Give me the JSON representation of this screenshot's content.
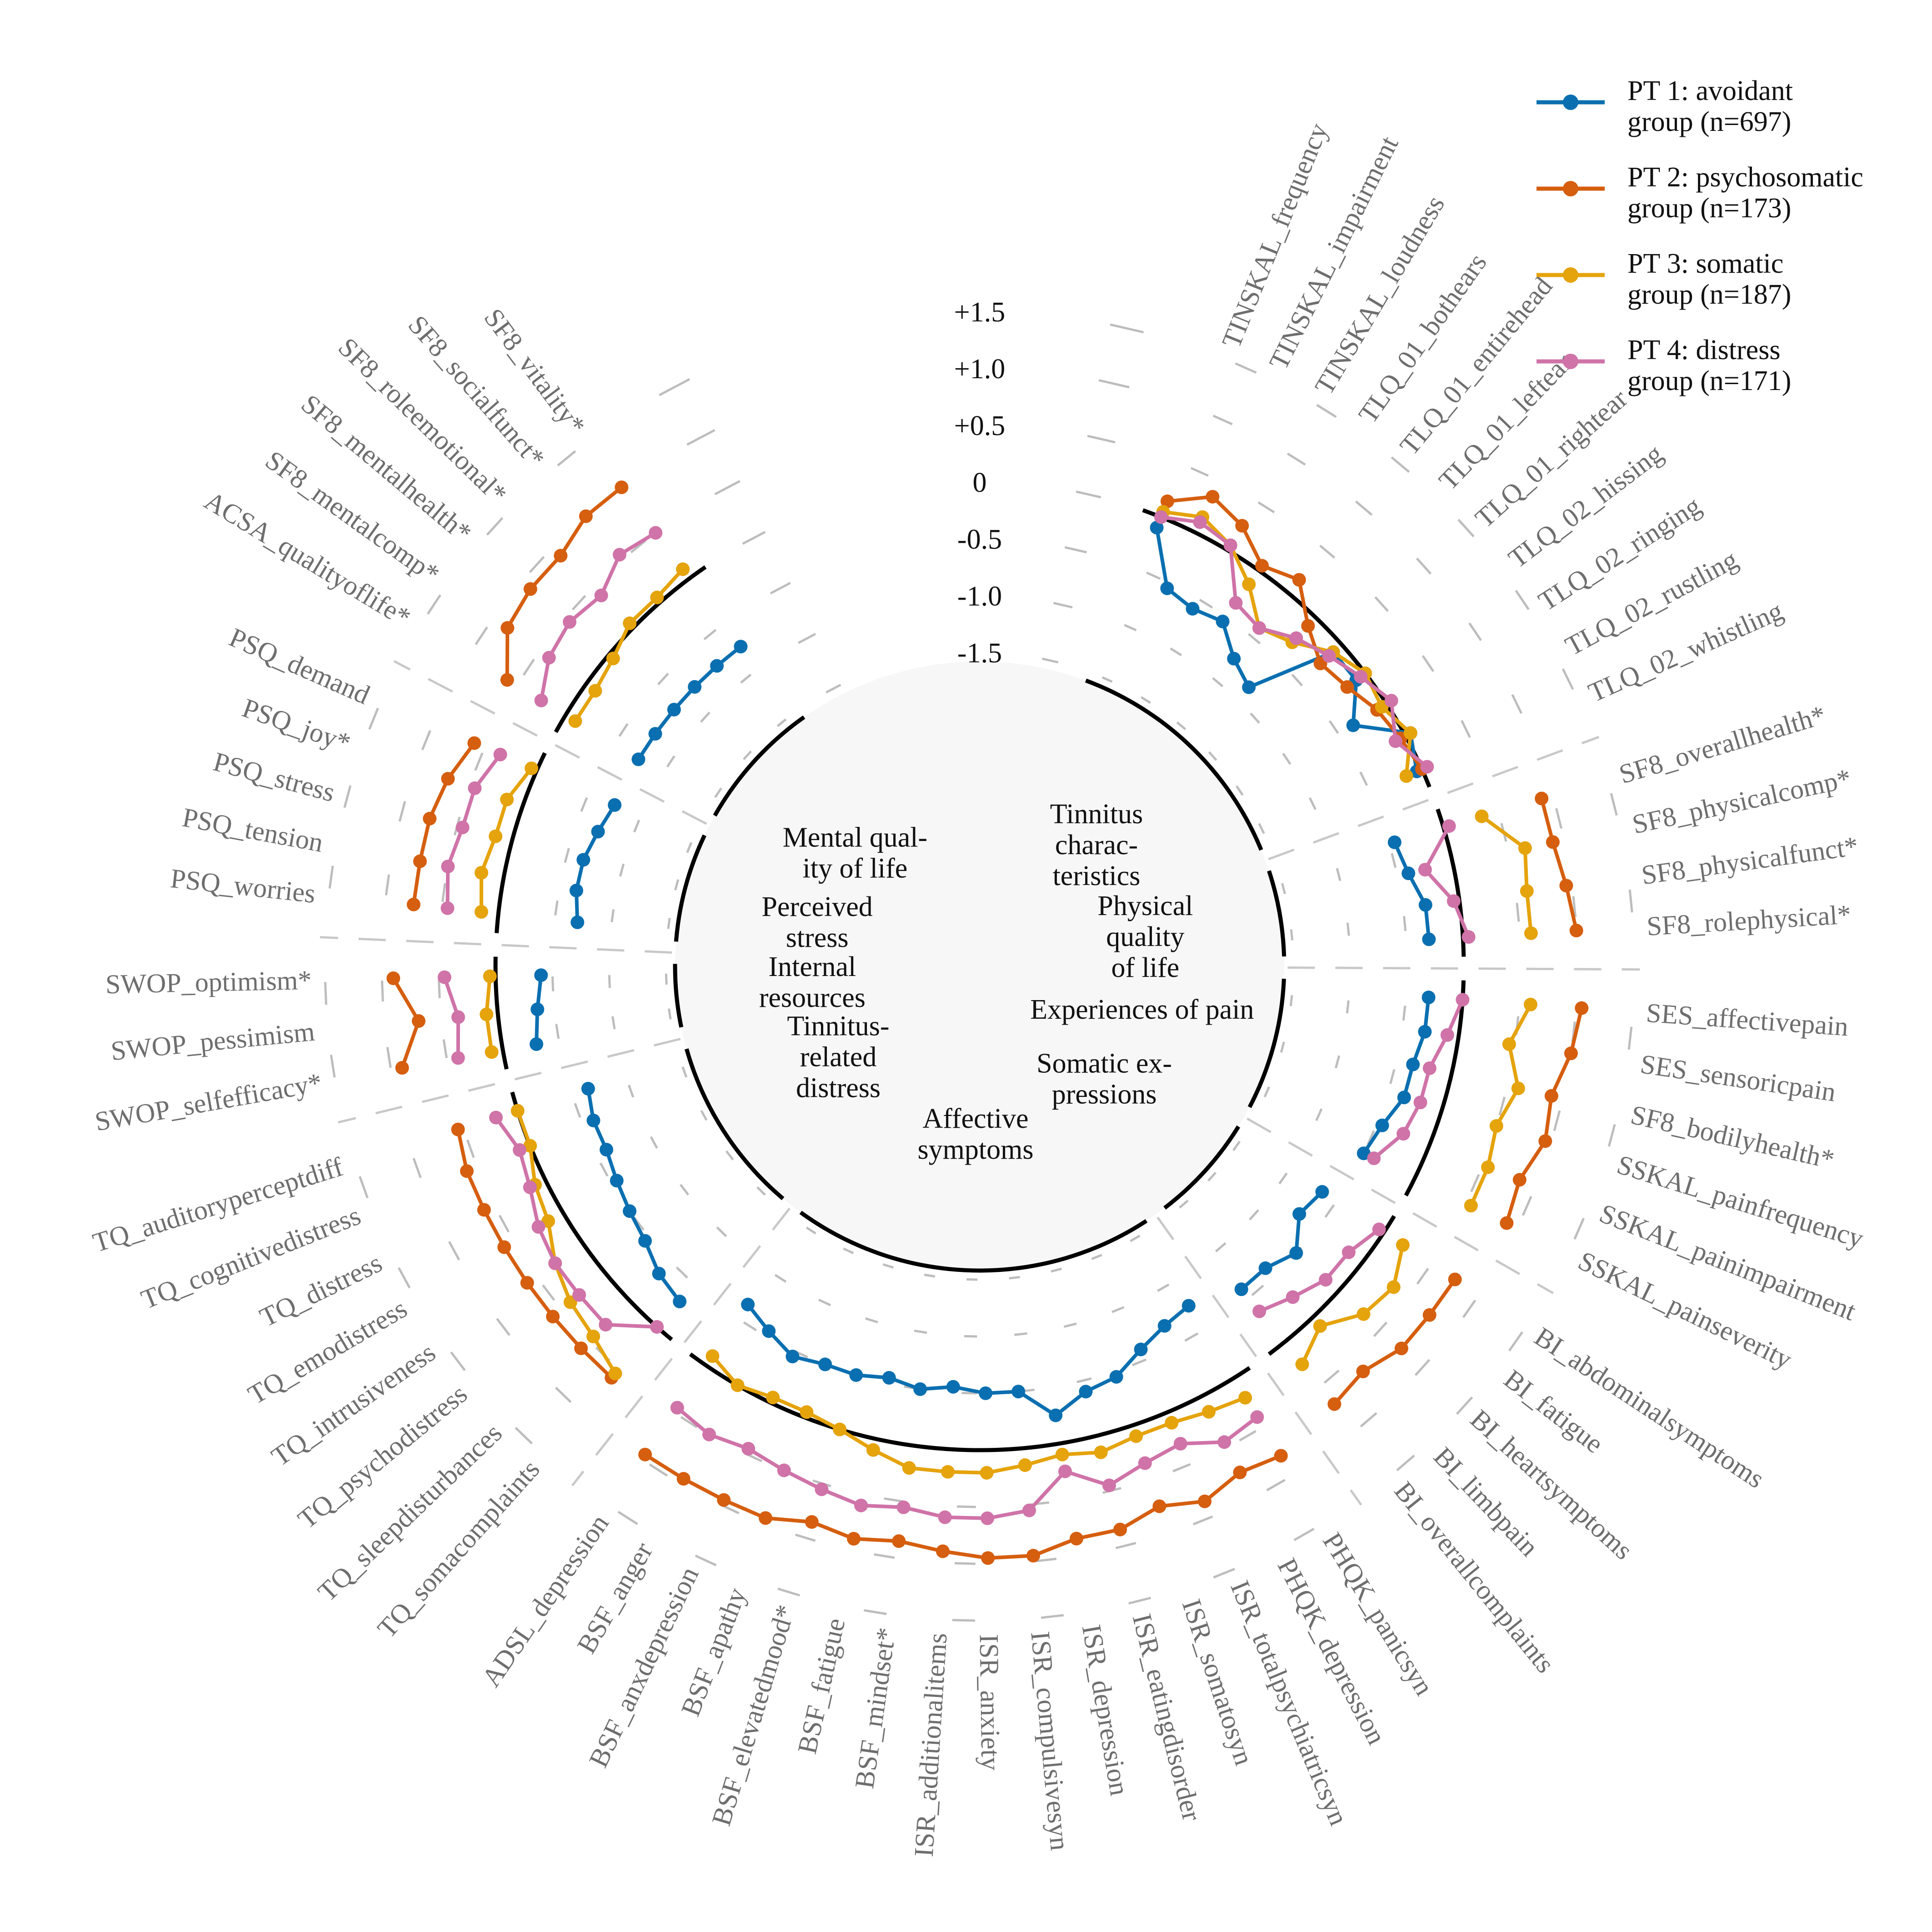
{
  "chart_data": {
    "type": "line",
    "layout": "radial",
    "ticks": [
      "+1.5",
      "+1.0",
      "+0.5",
      "0",
      "-0.5",
      "-1.0",
      "-1.5"
    ],
    "ylim": [
      -1.5,
      1.5
    ],
    "series": [
      {
        "name": "PT 1: avoidant group (n=697)",
        "legend_line1": "PT 1: avoidant",
        "legend_line2": "group (n=697)",
        "color": "#0a6fb0"
      },
      {
        "name": "PT 2: psychosomatic group (n=173)",
        "legend_line1": "PT 2: psychosomatic",
        "legend_line2": "group (n=173)",
        "color": "#d55e0f"
      },
      {
        "name": "PT 3: somatic group (n=187)",
        "legend_line1": "PT 3: somatic",
        "legend_line2": "group (n=187)",
        "color": "#e5a30c"
      },
      {
        "name": "PT 4: distress group (n=171)",
        "legend_line1": "PT 4: distress",
        "legend_line2": "group (n=171)",
        "color": "#cf73a8"
      }
    ],
    "domains": [
      {
        "name": "Tinnitus characteristics",
        "label_lines": [
          "Tinnitus",
          "charac-",
          "teristics"
        ],
        "variables": [
          "TINSKAL_frequency",
          "TINSKAL_impairment",
          "TINSKAL_loudness",
          "TLQ_01_bothears",
          "TLQ_01_entirehead",
          "TLQ_01_leftear",
          "TLQ_01_rightear",
          "TLQ_02_hissing",
          "TLQ_02_ringing",
          "TLQ_02_rustling",
          "TLQ_02_whistling"
        ],
        "values": [
          [
            -0.1,
            -0.55,
            -0.6,
            -0.55,
            -0.75,
            -0.85,
            -0.1,
            -0.1,
            -0.35,
            0.05,
            -0.05
          ],
          [
            0.15,
            0.35,
            0.25,
            0.05,
            0.15,
            -0.1,
            -0.25,
            -0.2,
            -0.1,
            -0.05,
            0.0
          ],
          [
            0.05,
            0.15,
            0.05,
            -0.15,
            -0.4,
            -0.3,
            -0.1,
            0.0,
            -0.05,
            0.05,
            -0.15
          ],
          [
            0.0,
            0.1,
            0.05,
            -0.35,
            -0.4,
            -0.25,
            -0.15,
            -0.05,
            0.05,
            -0.1,
            0.05
          ]
        ]
      },
      {
        "name": "Physical quality of life",
        "label_lines": [
          "Physical",
          "quality",
          "of life"
        ],
        "variables": [
          "SF8_overallhealth*",
          "SF8_physicalcomp*",
          "SF8_physicalfunct*",
          "SF8_rolephysical*"
        ],
        "values": [
          [
            -0.45,
            -0.4,
            -0.3,
            -0.3
          ],
          [
            0.9,
            0.9,
            0.95,
            1.0
          ],
          [
            0.35,
            0.65,
            0.6,
            0.6
          ],
          [
            0.05,
            -0.25,
            -0.05,
            0.05
          ]
        ]
      },
      {
        "name": "Experiences of pain",
        "label_lines": [
          "Experiences of pain"
        ],
        "variables": [
          "SES_affectivepain",
          "SES_sensoricpain",
          "SF8_bodilyhealth*",
          "SSKAL_painfrequency",
          "SSKAL_painimpairment",
          "SSKAL_painseverity"
        ],
        "values": [
          [
            -0.3,
            -0.3,
            -0.35,
            -0.35,
            -0.45,
            -0.5
          ],
          [
            1.05,
            1.0,
            0.9,
            0.95,
            0.85,
            0.9
          ],
          [
            0.6,
            0.45,
            0.6,
            0.5,
            0.55,
            0.55
          ],
          [
            0.0,
            -0.1,
            -0.2,
            -0.2,
            -0.25,
            -0.4
          ]
        ]
      },
      {
        "name": "Somatic expressions",
        "label_lines": [
          "Somatic ex-",
          "pressions"
        ],
        "variables": [
          "BI_abdominalsymptoms",
          "BI_fatigue",
          "BI_heartsymptoms",
          "BI_limbpain",
          "BI_overallcomplaints"
        ],
        "values": [
          [
            -0.65,
            -0.7,
            -0.5,
            -0.6,
            -0.6
          ],
          [
            0.75,
            0.75,
            0.75,
            0.65,
            0.7
          ],
          [
            0.2,
            0.35,
            0.3,
            0.1,
            0.25
          ],
          [
            -0.05,
            -0.15,
            -0.15,
            -0.25,
            -0.35
          ]
        ]
      },
      {
        "name": "Affective symptoms",
        "label_lines": [
          "Affective",
          "symptoms"
        ],
        "variables": [
          "PHQK_panicsyn",
          "PHQK_depression",
          "ISR_totalpsychiatricsyn",
          "ISR_somatosyn",
          "ISR_eatingdisorder",
          "ISR_depression",
          "ISR_compulsivesyn",
          "ISR_anxiety",
          "ISR_additionalitems",
          "BSF_mindset*",
          "BSF_fatigue",
          "BSF_elevatedmood*",
          "BSF_apathy",
          "BSF_anxdepression",
          "BSF_anger",
          "ADSL_depression"
        ],
        "values": [
          [
            -0.75,
            -0.7,
            -0.6,
            -0.45,
            -0.4,
            -0.25,
            -0.5,
            -0.5,
            -0.55,
            -0.5,
            -0.55,
            -0.5,
            -0.5,
            -0.45,
            -0.55,
            -0.65
          ],
          [
            0.8,
            0.75,
            0.85,
            0.75,
            0.85,
            0.85,
            0.95,
            0.95,
            0.9,
            0.85,
            0.9,
            0.85,
            0.95,
            0.95,
            0.95,
            0.95
          ],
          [
            0.2,
            0.15,
            0.1,
            0.1,
            0.15,
            0.1,
            0.15,
            0.2,
            0.2,
            0.2,
            0.1,
            0.0,
            -0.05,
            -0.05,
            0.0,
            -0.1
          ],
          [
            0.4,
            0.45,
            0.3,
            0.35,
            0.45,
            0.25,
            0.55,
            0.6,
            0.6,
            0.55,
            0.6,
            0.55,
            0.5,
            0.45,
            0.5,
            0.45
          ]
        ]
      },
      {
        "name": "Tinnitus-related distress",
        "label_lines": [
          "Tinnitus-",
          "related",
          "distress"
        ],
        "variables": [
          "TQ_somacomplaints",
          "TQ_sleepdisturbances",
          "TQ_psychodistress",
          "TQ_intrusiveness",
          "TQ_emodistress",
          "TQ_distress",
          "TQ_cognitivedistress",
          "TQ_auditoryperceptdiff"
        ],
        "values": [
          [
            -0.3,
            -0.35,
            -0.45,
            -0.5,
            -0.55,
            -0.6,
            -0.6,
            -0.65
          ],
          [
            0.6,
            0.6,
            0.6,
            0.6,
            0.6,
            0.6,
            0.6,
            0.55
          ],
          [
            0.55,
            0.45,
            0.4,
            0.3,
            0.15,
            0.1,
            0.0,
            0.0
          ],
          [
            0.0,
            0.3,
            0.3,
            0.3,
            0.25,
            0.15,
            0.1,
            0.2
          ]
        ]
      },
      {
        "name": "Internal resources",
        "label_lines": [
          "Internal",
          "resources"
        ],
        "variables": [
          "SWOP_selfefficacy*",
          "SWOP_pessimism",
          "SWOP_optimism*"
        ],
        "values": [
          [
            -0.3,
            -0.35,
            -0.4
          ],
          [
            0.9,
            0.7,
            0.9
          ],
          [
            0.1,
            0.1,
            0.05
          ],
          [
            0.4,
            0.35,
            0.45
          ]
        ]
      },
      {
        "name": "Perceived stress",
        "label_lines": [
          "Perceived",
          "stress"
        ],
        "variables": [
          "PSQ_worries",
          "PSQ_tension",
          "PSQ_stress",
          "PSQ_joy*",
          "PSQ_demand"
        ],
        "values": [
          [
            -0.7,
            -0.65,
            -0.65,
            -0.7,
            -0.75
          ],
          [
            0.75,
            0.75,
            0.75,
            0.7,
            0.6
          ],
          [
            0.15,
            0.2,
            0.15,
            0.15,
            0.05
          ],
          [
            0.45,
            0.5,
            0.45,
            0.45,
            0.35
          ]
        ]
      },
      {
        "name": "Mental quality of life",
        "label_lines": [
          "Mental qual-",
          "ity of life"
        ],
        "variables": [
          "ACSA_qualityoflife*",
          "SF8_mentalcomp*",
          "SF8_mentalhealth*",
          "SF8_roleemotional*",
          "SF8_socialfunct*",
          "SF8_vitality*"
        ],
        "values": [
          [
            -0.75,
            -0.75,
            -0.75,
            -0.75,
            -0.75,
            -0.75
          ],
          [
            0.6,
            0.85,
            0.9,
            0.9,
            1.0,
            1.0
          ],
          [
            -0.1,
            -0.1,
            -0.05,
            0.05,
            0.05,
            0.1
          ],
          [
            0.25,
            0.4,
            0.45,
            0.4,
            0.55,
            0.5
          ]
        ]
      }
    ]
  }
}
